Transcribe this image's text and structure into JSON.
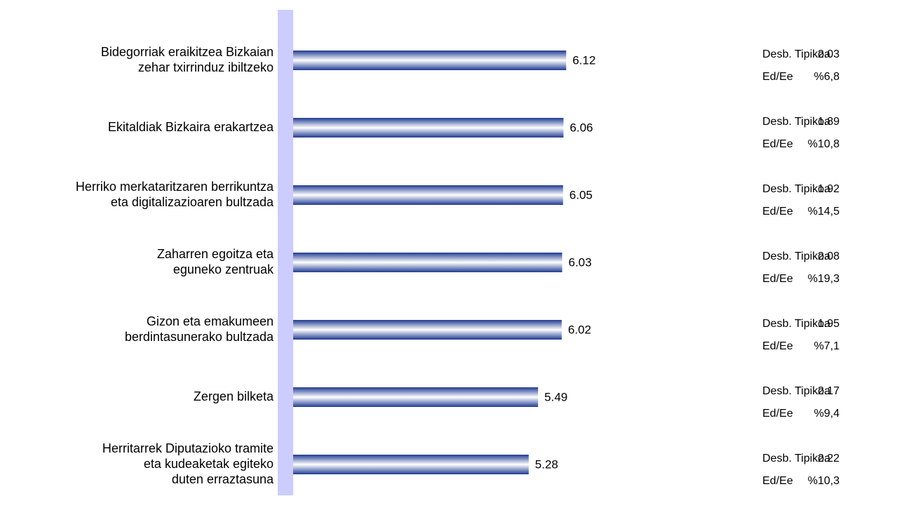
{
  "chart_data": {
    "type": "bar",
    "orientation": "horizontal",
    "categories": [
      "Bidegorriak eraikitzea Bizkaian\nzehar txirrinduz ibiltzeko",
      "Ekitaldiak Bizkaira erakartzea",
      "Herriko merkataritzaren berrikuntza\neta digitalizazioaren bultzada",
      "Zaharren egoitza eta\neguneko zentruak",
      "Gizon eta emakumeen\nberdintasunerako bultzada",
      "Zergen bilketa",
      "Herritarrek Diputazioko tramite\neta kudeaketak egiteko\nduten erraztasuna"
    ],
    "values": [
      6.12,
      6.06,
      6.05,
      6.03,
      6.02,
      5.49,
      5.28
    ],
    "color": "#1f3a93",
    "xlim": [
      0,
      10
    ],
    "stats": {
      "std_label": "Desb. Tipikoa",
      "std_values": [
        2.03,
        1.89,
        1.92,
        2.08,
        1.95,
        2.17,
        2.22
      ],
      "ratio_label": "Ed/Ee",
      "ratio_values": [
        "%6,8",
        "%10,8",
        "%14,5",
        "%19,3",
        "%7,1",
        "%9,4",
        "%10,3"
      ]
    }
  }
}
